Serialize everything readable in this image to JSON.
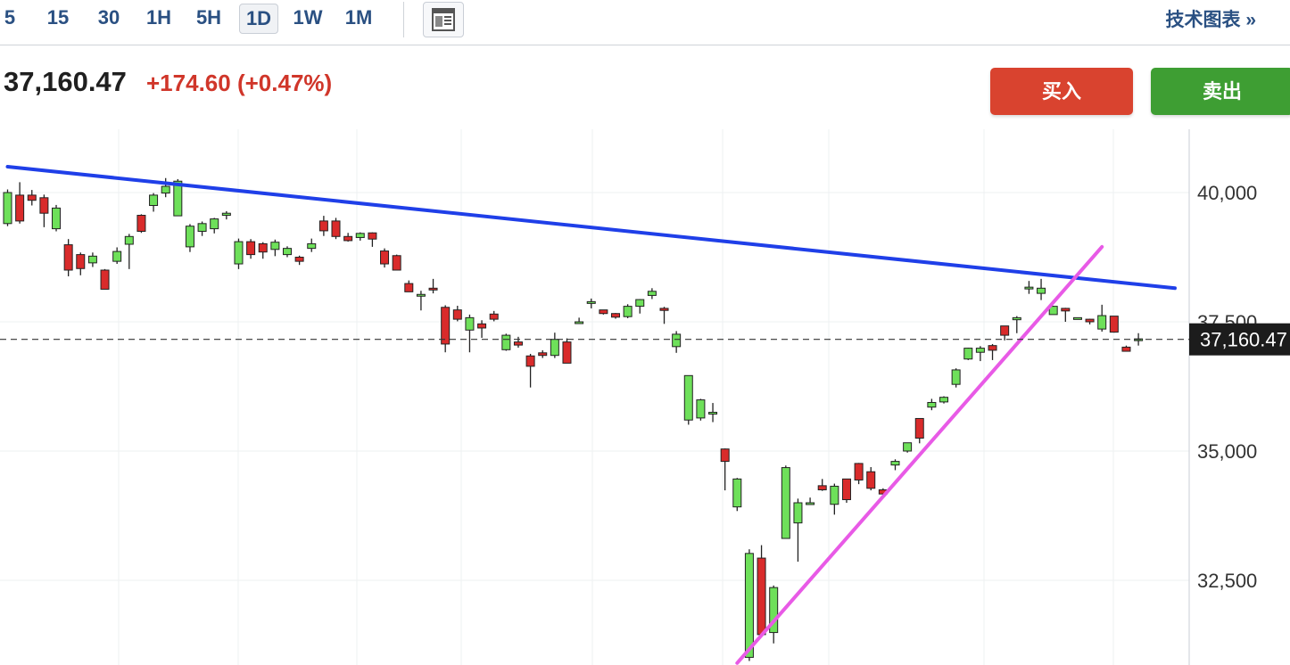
{
  "toolbar": {
    "timeframes": [
      "5",
      "15",
      "30",
      "1H",
      "5H",
      "1D",
      "1W",
      "1M"
    ],
    "active_timeframe": "1D",
    "layout_icon": "layout-icon",
    "tech_chart_label": "技术图表 »"
  },
  "quote": {
    "price": "37,160.47",
    "change": "+174.60",
    "change_pct": "(+0.47%)",
    "change_color": "#d0362a"
  },
  "actions": {
    "buy_label": "买入",
    "sell_label": "卖出",
    "buy_color": "#d9432f",
    "sell_color": "#3e9e33"
  },
  "chart_data": {
    "type": "candlestick",
    "y_ticks": [
      "40,000",
      "37,500",
      "35,000",
      "32,500"
    ],
    "y_tick_values": [
      40000,
      37500,
      35000,
      32500
    ],
    "last_price_label": "37,160.47",
    "last_price": 37160.47,
    "up_color": "#6ee05a",
    "down_color": "#d92b2b",
    "grid": true,
    "candles": [
      [
        39400,
        40000,
        40060,
        39350
      ],
      [
        39950,
        39450,
        40200,
        39400
      ],
      [
        39950,
        39850,
        40050,
        39750
      ],
      [
        39900,
        39600,
        39960,
        39330
      ],
      [
        39300,
        39700,
        39760,
        39250
      ],
      [
        38990,
        38500,
        39100,
        38380
      ],
      [
        38800,
        38530,
        38840,
        38400
      ],
      [
        38640,
        38770,
        38840,
        38560
      ],
      [
        38500,
        38130,
        38520,
        38130
      ],
      [
        38670,
        38860,
        38940,
        38620
      ],
      [
        39000,
        39150,
        39200,
        38520
      ],
      [
        39560,
        39250,
        39580,
        39220
      ],
      [
        39750,
        39950,
        39990,
        39630
      ],
      [
        39990,
        40120,
        40280,
        39910
      ],
      [
        39550,
        40220,
        40260,
        39550
      ],
      [
        38950,
        39350,
        39390,
        38850
      ],
      [
        39250,
        39400,
        39440,
        39160
      ],
      [
        39300,
        39490,
        39510,
        39210
      ],
      [
        39560,
        39600,
        39640,
        39480
      ],
      [
        38620,
        39050,
        39110,
        38520
      ],
      [
        39050,
        38800,
        39100,
        38720
      ],
      [
        39010,
        38850,
        39040,
        38720
      ],
      [
        38900,
        39040,
        39090,
        38770
      ],
      [
        38800,
        38920,
        38960,
        38750
      ],
      [
        38750,
        38670,
        38780,
        38600
      ],
      [
        38920,
        39010,
        39110,
        38850
      ],
      [
        39450,
        39260,
        39550,
        39160
      ],
      [
        39450,
        39150,
        39510,
        39100
      ],
      [
        39150,
        39070,
        39220,
        39050
      ],
      [
        39130,
        39210,
        39230,
        39070
      ],
      [
        39220,
        39100,
        39230,
        38950
      ],
      [
        38870,
        38620,
        38920,
        38550
      ],
      [
        38780,
        38500,
        38800,
        38500
      ],
      [
        38240,
        38080,
        38300,
        38080
      ],
      [
        38020,
        38030,
        38100,
        37720
      ],
      [
        38150,
        38140,
        38330,
        38050
      ],
      [
        37780,
        37070,
        37820,
        36910
      ],
      [
        37730,
        37550,
        37810,
        37510
      ],
      [
        37340,
        37580,
        37640,
        36910
      ],
      [
        37460,
        37380,
        37530,
        37190
      ],
      [
        37650,
        37550,
        37710,
        37510
      ],
      [
        36960,
        37240,
        37270,
        36940
      ],
      [
        37110,
        37050,
        37210,
        37000
      ],
      [
        36840,
        36640,
        36880,
        36230
      ],
      [
        36900,
        36850,
        36950,
        36800
      ],
      [
        36850,
        37160,
        37290,
        36800
      ],
      [
        37110,
        36700,
        37180,
        36700
      ],
      [
        37500,
        37500,
        37580,
        37480
      ],
      [
        37880,
        37890,
        37950,
        37760
      ],
      [
        37730,
        37660,
        37730,
        37640
      ],
      [
        37660,
        37590,
        37670,
        37560
      ],
      [
        37600,
        37800,
        37840,
        37570
      ],
      [
        37800,
        37930,
        37940,
        37660
      ],
      [
        38010,
        38090,
        38150,
        37940
      ],
      [
        37760,
        37720,
        37790,
        37460
      ],
      [
        37020,
        37260,
        37320,
        36900
      ],
      [
        35600,
        36460,
        36460,
        35510
      ],
      [
        35640,
        35990,
        36010,
        35590
      ],
      [
        35750,
        35750,
        35930,
        35560
      ],
      [
        35040,
        34800,
        35050,
        34240
      ],
      [
        33920,
        34460,
        34480,
        33840
      ],
      [
        31010,
        33020,
        33100,
        30940
      ],
      [
        32930,
        31450,
        33180,
        31450
      ],
      [
        31490,
        32360,
        32400,
        31280
      ],
      [
        33310,
        34680,
        34720,
        33310
      ],
      [
        33610,
        34000,
        34080,
        32860
      ],
      [
        33990,
        34000,
        34100,
        33960
      ],
      [
        34330,
        34250,
        34460,
        34230
      ],
      [
        33970,
        34320,
        34370,
        33770
      ],
      [
        34460,
        34060,
        34460,
        34000
      ],
      [
        34760,
        34440,
        34770,
        34360
      ],
      [
        34600,
        34280,
        34690,
        34240
      ],
      [
        34250,
        34170,
        34280,
        34120
      ],
      [
        34730,
        34800,
        34840,
        34630
      ],
      [
        35000,
        35160,
        35160,
        34970
      ],
      [
        35630,
        35250,
        35630,
        35150
      ],
      [
        35850,
        35940,
        36010,
        35790
      ],
      [
        35950,
        36040,
        36060,
        35920
      ],
      [
        36290,
        36570,
        36600,
        36230
      ],
      [
        36780,
        36990,
        37000,
        36760
      ],
      [
        36910,
        36990,
        37030,
        36740
      ],
      [
        37040,
        36950,
        37070,
        36760
      ],
      [
        37420,
        37240,
        37420,
        37140
      ],
      [
        37540,
        37580,
        37610,
        37280
      ],
      [
        38170,
        38170,
        38290,
        38040
      ],
      [
        38050,
        38150,
        38330,
        37920
      ],
      [
        37640,
        37800,
        37810,
        37730
      ],
      [
        37760,
        37710,
        37770,
        37500
      ],
      [
        37570,
        37580,
        37580,
        37570
      ],
      [
        37550,
        37500,
        37560,
        37450
      ],
      [
        37360,
        37620,
        37830,
        37310
      ],
      [
        37610,
        37300,
        37610,
        37290
      ],
      [
        37010,
        36930,
        37040,
        36930
      ],
      [
        37150,
        37170,
        37280,
        37040
      ]
    ],
    "trendlines": [
      {
        "name": "blue-trendline",
        "color": "#1f3fe8",
        "start": [
          0,
          40500
        ],
        "end": [
          96,
          38150
        ]
      },
      {
        "name": "magenta-trendline",
        "color": "#e85ae6",
        "start": [
          60,
          30900
        ],
        "end": [
          90,
          38950
        ]
      }
    ]
  }
}
